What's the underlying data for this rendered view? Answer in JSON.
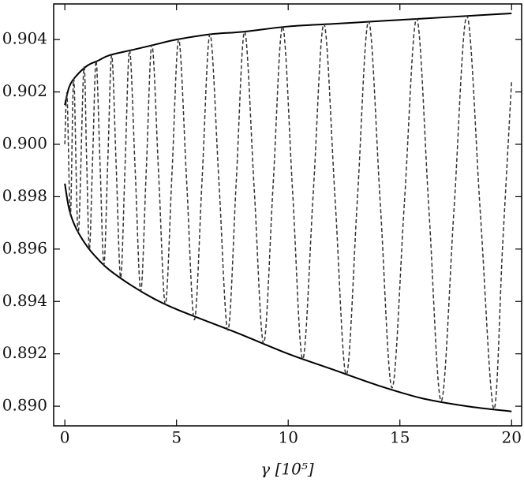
{
  "chart_data": {
    "type": "line",
    "xlabel": "γ [10⁵]",
    "xlim": [
      -0.5,
      20.45
    ],
    "ylim": [
      0.88925,
      0.90536
    ],
    "xticks": [
      0,
      5,
      10,
      15,
      20
    ],
    "yticks": [
      {
        "value": 0.89,
        "label": "0.890"
      },
      0.892,
      0.894,
      0.896,
      0.898,
      {
        "value": 0.9,
        "label": "0.900"
      },
      0.902,
      0.904
    ],
    "series": [
      {
        "color": "#000000",
        "dashed": false,
        "x": [
          0,
          0.2,
          0.5,
          1,
          1.5,
          2,
          3,
          4,
          5,
          6.5,
          8,
          10,
          12,
          14,
          16,
          18,
          20
        ],
        "values": [
          0.9015,
          0.9022,
          0.9026,
          0.903,
          0.9032,
          0.9034,
          0.9036,
          0.9038,
          0.904,
          0.9042,
          0.9043,
          0.9045,
          0.9046,
          0.9047,
          0.9048,
          0.9049,
          0.905
        ]
      },
      {
        "color": "#000000",
        "dashed": false,
        "x": [
          0,
          0.2,
          0.5,
          1,
          1.5,
          2,
          3,
          4,
          5,
          6.5,
          8,
          10,
          12,
          14,
          16,
          18,
          20
        ],
        "values": [
          0.8985,
          0.8975,
          0.8968,
          0.8961,
          0.8956,
          0.8952,
          0.8946,
          0.8941,
          0.8937,
          0.8932,
          0.8927,
          0.892,
          0.8914,
          0.8908,
          0.8903,
          0.89,
          0.8898
        ]
      },
      {
        "color": "#333333",
        "dashed": true,
        "x": [
          0,
          0.1,
          0.25,
          0.4,
          0.6,
          0.85,
          0.975,
          1.1,
          1.25,
          1.4,
          1.575,
          1.75,
          1.925,
          2.1,
          2.3,
          2.5,
          2.7,
          2.9,
          3.15,
          3.4,
          3.65,
          3.9,
          4.2,
          4.5,
          4.8,
          5.1,
          5.45,
          5.8,
          6.15,
          6.5,
          6.9,
          7.3,
          7.675,
          8.05,
          8.475,
          8.9,
          9.325,
          9.75,
          10.2,
          10.65,
          11.125,
          11.6,
          12.1,
          12.6,
          13.1,
          13.6,
          14.125,
          14.65,
          15.2,
          15.75,
          16.3,
          16.85,
          17.425,
          18,
          18.6,
          19.2,
          19.6,
          20
        ],
        "values": [
          0.9,
          0.9019,
          0.8973,
          0.9025,
          0.8966,
          0.9029,
          0.89945,
          0.896,
          0.8996,
          0.9032,
          0.8993,
          0.8954,
          0.8994,
          0.9034,
          0.89915,
          0.8949,
          0.89925,
          0.9036,
          0.899,
          0.8944,
          0.8991,
          0.9038,
          0.89885,
          0.8939,
          0.89895,
          0.904,
          0.89865,
          0.8933,
          0.89875,
          0.9042,
          0.89855,
          0.8929,
          0.8986,
          0.9043,
          0.89835,
          0.8924,
          0.89845,
          0.9045,
          0.89815,
          0.8918,
          0.8982,
          0.9046,
          0.8979,
          0.8912,
          0.89795,
          0.9047,
          0.8977,
          0.8907,
          0.89775,
          0.9048,
          0.8975,
          0.8902,
          0.89755,
          0.9049,
          0.8974,
          0.8899,
          0.89615,
          0.9024
        ]
      }
    ]
  }
}
